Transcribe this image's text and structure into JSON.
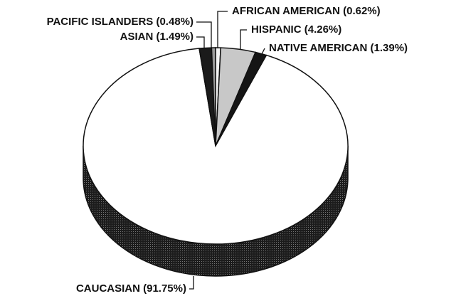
{
  "chart_data": {
    "type": "pie",
    "categories": [
      "AFRICAN AMERICAN (0.62%)",
      "HISPANIC (4.26%)",
      "NATIVE AMERICAN (1.39%)",
      "CAUCASIAN (91.75%)",
      "ASIAN (1.49%)",
      "PACIFIC ISLANDERS (0.48%)"
    ],
    "values": [
      0.62,
      4.26,
      1.39,
      91.75,
      1.49,
      0.48
    ],
    "colors": [
      "#f4f4f4",
      "#c8c8c8",
      "#151515",
      "#ffffff",
      "#1a1a1a",
      "#9a9a9a"
    ]
  }
}
